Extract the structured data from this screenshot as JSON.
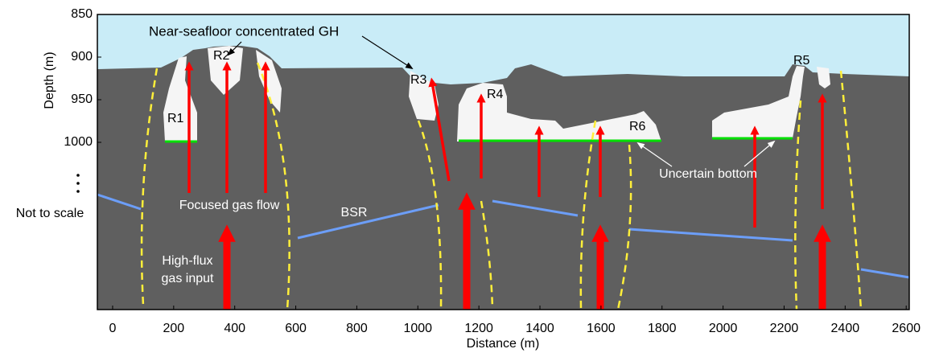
{
  "axes": {
    "xlabel": "Distance (m)",
    "ylabel": "Depth (m)",
    "xlim": [
      -50,
      2610
    ],
    "xticks": [
      0,
      200,
      400,
      600,
      800,
      1000,
      1200,
      1400,
      1600,
      1800,
      2000,
      2200,
      2400,
      2600
    ],
    "ylim": [
      850,
      1000
    ],
    "yticks": [
      850,
      900,
      950,
      1000
    ],
    "break_label": "Not to scale"
  },
  "annotations": {
    "gh": "Near-seafloor concentrated GH",
    "r1": "R1",
    "r2": "R2",
    "r3": "R3",
    "r4": "R4",
    "r5": "R5",
    "r6": "R6",
    "focused": "Focused gas flow",
    "bsr": "BSR",
    "input": [
      "High-flux",
      "gas input"
    ],
    "bottom": "Uncertain bottom"
  }
}
